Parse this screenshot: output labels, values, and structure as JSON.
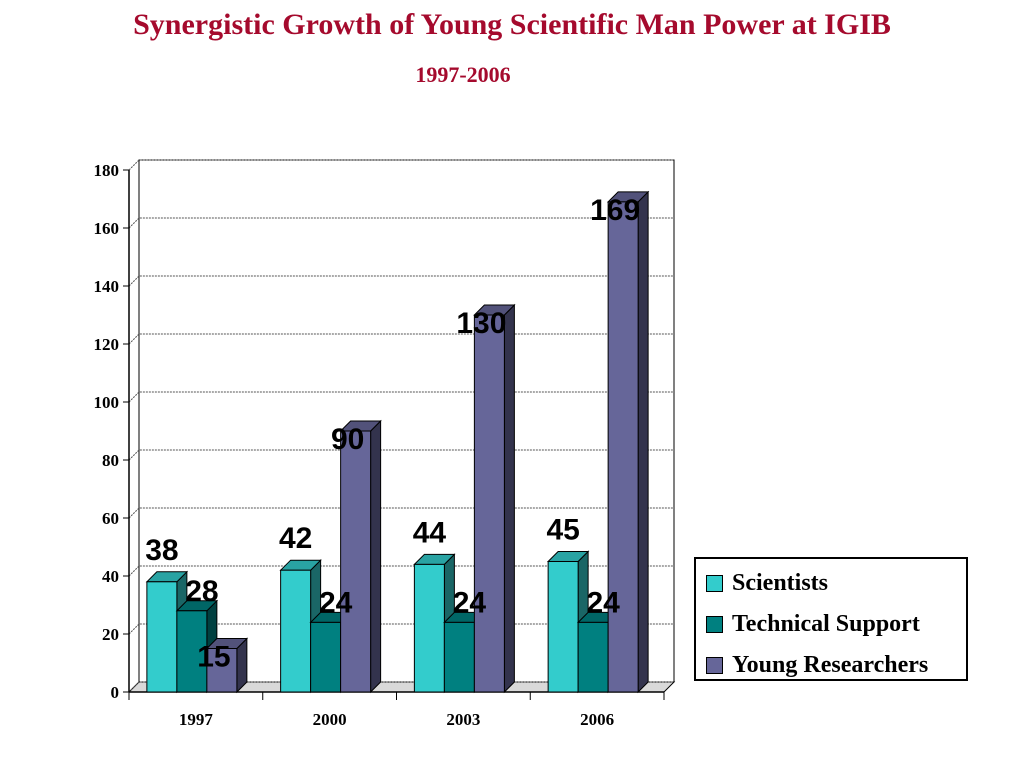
{
  "chart_data": {
    "type": "bar",
    "title": "Synergistic Growth of Young Scientific Man Power at IGIB",
    "subtitle": "1997-2006",
    "categories": [
      "1997",
      "2000",
      "2003",
      "2006"
    ],
    "series": [
      {
        "name": "Scientists",
        "values": [
          38,
          42,
          44,
          45
        ],
        "color": "#33cccc"
      },
      {
        "name": "Technical Support",
        "values": [
          28,
          24,
          24,
          24
        ],
        "color": "#008080"
      },
      {
        "name": "Young Researchers",
        "values": [
          15,
          90,
          130,
          169
        ],
        "color": "#666699"
      }
    ],
    "ylim": [
      0,
      180
    ],
    "yticks": [
      0,
      20,
      40,
      60,
      80,
      100,
      120,
      140,
      160,
      180
    ],
    "grid": true,
    "legend_position": "right"
  }
}
